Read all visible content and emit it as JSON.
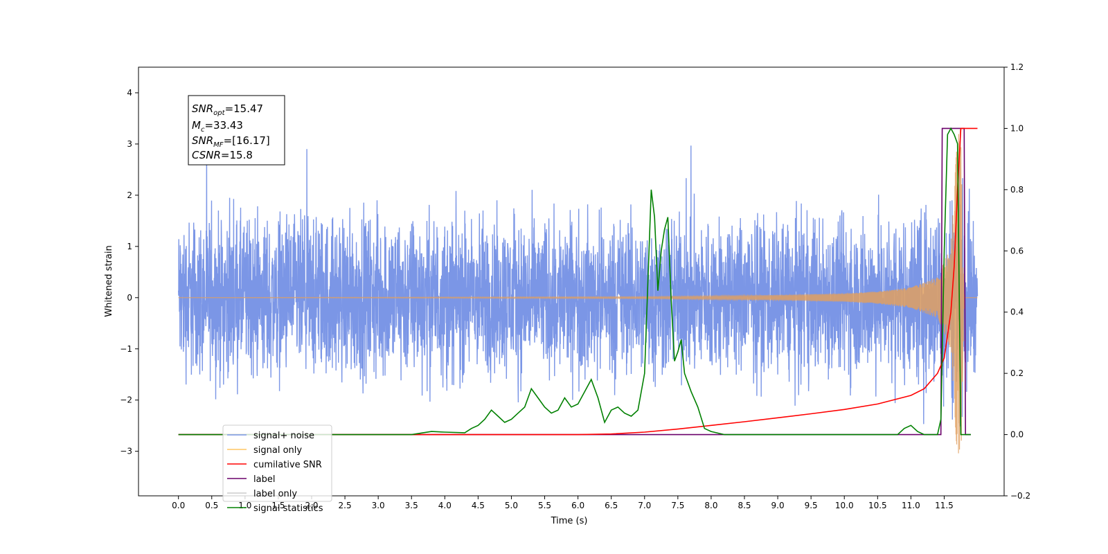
{
  "chart_data": {
    "type": "line",
    "xlabel": "Time (s)",
    "ylabel": "Whitened strain",
    "xlim": [
      -0.6,
      12.4
    ],
    "ylim": [
      -3.87,
      4.5
    ],
    "y2lim": [
      -0.2,
      1.2
    ],
    "x_ticks": [
      "0.0",
      "0.5",
      "1.0",
      "1.5",
      "2.0",
      "2.5",
      "3.0",
      "3.5",
      "4.0",
      "4.5",
      "5.0",
      "5.5",
      "6.0",
      "6.5",
      "7.0",
      "7.5",
      "8.0",
      "8.5",
      "9.0",
      "9.5",
      "10.0",
      "10.5",
      "11.0",
      "11.5"
    ],
    "y_ticks": [
      "−3",
      "−2",
      "−1",
      "0",
      "1",
      "2",
      "3",
      "4"
    ],
    "y2_ticks": [
      "−0.2",
      "0.0",
      "0.2",
      "0.4",
      "0.6",
      "0.8",
      "1.0",
      "1.2"
    ],
    "annotation": {
      "lines": [
        {
          "base": "SNR",
          "sub": "opt",
          "rest": "=15.47"
        },
        {
          "base": "M",
          "sub": "c",
          "rest": "=33.43"
        },
        {
          "base": "SNR",
          "sub": "MF",
          "rest": "=[16.17]"
        },
        {
          "base": "CSNR",
          "sub": "",
          "rest": "=15.8"
        }
      ]
    },
    "legend": {
      "placement": "lower-left",
      "entries": [
        {
          "label": "signal+ noise",
          "color": "#7b96e6"
        },
        {
          "label": "signal only",
          "color": "#ffc664"
        },
        {
          "label": "cumilative SNR",
          "color": "#ff0000"
        },
        {
          "label": "label",
          "color": "#6a006a"
        },
        {
          "label": "label only",
          "color": "#cccccc"
        },
        {
          "label": "signal statistics",
          "color": "#008000"
        }
      ]
    },
    "series": [
      {
        "name": "signal+ noise",
        "axis": "left",
        "color": "#7b96e6",
        "x_range": [
          0.0,
          12.0
        ],
        "noise_amplitude_envelope": [
          [
            0.0,
            2.6
          ],
          [
            3.0,
            2.7
          ],
          [
            6.0,
            2.6
          ],
          [
            9.0,
            2.6
          ],
          [
            11.0,
            2.7
          ],
          [
            11.5,
            3.2
          ],
          [
            11.7,
            4.1
          ],
          [
            12.0,
            2.0
          ]
        ],
        "y_max": 4.1,
        "y_min": -3.45
      },
      {
        "name": "signal only",
        "axis": "left",
        "color": "#e0a060",
        "x_range": [
          0.0,
          12.0
        ],
        "amplitude": [
          [
            0.0,
            0.0
          ],
          [
            7.0,
            0.02
          ],
          [
            9.0,
            0.05
          ],
          [
            10.0,
            0.08
          ],
          [
            10.5,
            0.12
          ],
          [
            11.0,
            0.2
          ],
          [
            11.4,
            0.4
          ],
          [
            11.6,
            1.0
          ],
          [
            11.7,
            3.2
          ],
          [
            11.75,
            3.3
          ],
          [
            11.8,
            0.0
          ]
        ]
      },
      {
        "name": "cumilative SNR",
        "axis": "right",
        "color": "#ff0000",
        "x": [
          0.0,
          6.0,
          6.5,
          7.0,
          7.5,
          8.0,
          8.5,
          9.0,
          9.5,
          10.0,
          10.5,
          11.0,
          11.2,
          11.4,
          11.5,
          11.6,
          11.65,
          11.7,
          11.75,
          12.0
        ],
        "values": [
          0.0,
          0.0,
          0.002,
          0.008,
          0.018,
          0.03,
          0.042,
          0.055,
          0.068,
          0.082,
          0.1,
          0.128,
          0.15,
          0.2,
          0.25,
          0.4,
          0.55,
          0.8,
          1.0,
          1.0
        ]
      },
      {
        "name": "label",
        "axis": "right",
        "color": "#6a006a",
        "x": [
          0.0,
          11.45,
          11.47,
          11.8,
          11.82,
          11.9
        ],
        "values": [
          0.0,
          0.0,
          1.0,
          1.0,
          0.0,
          0.0
        ]
      },
      {
        "name": "signal statistics",
        "axis": "right",
        "color": "#008000",
        "x": [
          0.0,
          2.5,
          3.5,
          3.8,
          4.0,
          4.3,
          4.4,
          4.5,
          4.6,
          4.7,
          4.8,
          4.9,
          5.0,
          5.1,
          5.2,
          5.3,
          5.4,
          5.5,
          5.6,
          5.7,
          5.8,
          5.9,
          6.0,
          6.1,
          6.2,
          6.3,
          6.4,
          6.5,
          6.6,
          6.7,
          6.8,
          6.9,
          7.0,
          7.05,
          7.1,
          7.15,
          7.2,
          7.25,
          7.3,
          7.35,
          7.4,
          7.45,
          7.5,
          7.55,
          7.6,
          7.7,
          7.8,
          7.9,
          8.0,
          8.2,
          10.5,
          10.8,
          10.9,
          11.0,
          11.1,
          11.2,
          11.3,
          11.4,
          11.45,
          11.5,
          11.55,
          11.6,
          11.65,
          11.7,
          11.75,
          11.8,
          11.9
        ],
        "values": [
          0.0,
          0.0,
          0.0,
          0.01,
          0.008,
          0.006,
          0.02,
          0.03,
          0.05,
          0.08,
          0.06,
          0.04,
          0.05,
          0.07,
          0.09,
          0.15,
          0.12,
          0.09,
          0.07,
          0.08,
          0.12,
          0.09,
          0.1,
          0.14,
          0.18,
          0.12,
          0.04,
          0.08,
          0.09,
          0.07,
          0.06,
          0.08,
          0.2,
          0.5,
          0.8,
          0.71,
          0.47,
          0.6,
          0.67,
          0.71,
          0.44,
          0.24,
          0.27,
          0.31,
          0.2,
          0.14,
          0.09,
          0.02,
          0.01,
          0.0,
          0.0,
          0.0,
          0.02,
          0.03,
          0.01,
          0.0,
          0.0,
          0.0,
          0.05,
          0.6,
          0.98,
          1.0,
          0.98,
          0.95,
          0.0,
          0.0,
          0.0
        ]
      }
    ]
  }
}
